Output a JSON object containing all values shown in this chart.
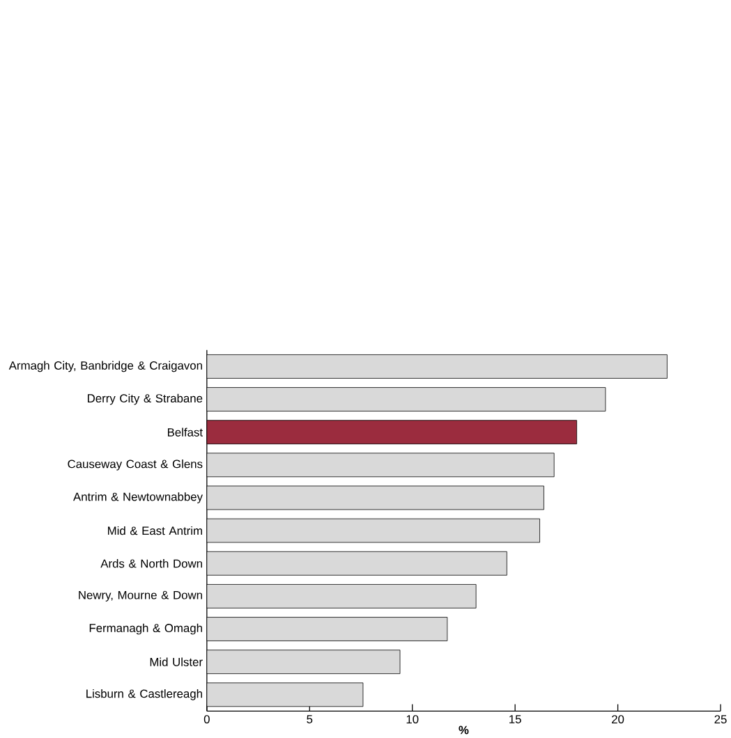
{
  "chart_data": {
    "type": "bar",
    "orientation": "horizontal",
    "xlabel": "%",
    "categories": [
      "Armagh City, Banbridge & Craigavon",
      "Derry City & Strabane",
      "Belfast",
      "Causeway Coast & Glens",
      "Antrim & Newtownabbey",
      "Mid & East Antrim",
      "Ards & North Down",
      "Newry, Mourne & Down",
      "Fermanagh & Omagh",
      "Mid Ulster",
      "Lisburn & Castlereagh"
    ],
    "values": [
      22.4,
      19.4,
      18.0,
      16.9,
      16.4,
      16.2,
      14.6,
      13.1,
      11.7,
      9.4,
      7.6
    ],
    "colors": [
      "#d9d9d9",
      "#d9d9d9",
      "#9b2c3e",
      "#d9d9d9",
      "#d9d9d9",
      "#d9d9d9",
      "#d9d9d9",
      "#d9d9d9",
      "#d9d9d9",
      "#d9d9d9",
      "#d9d9d9"
    ],
    "xlim": [
      0,
      25
    ],
    "xticks": [
      0,
      5,
      10,
      15,
      20,
      25
    ]
  }
}
